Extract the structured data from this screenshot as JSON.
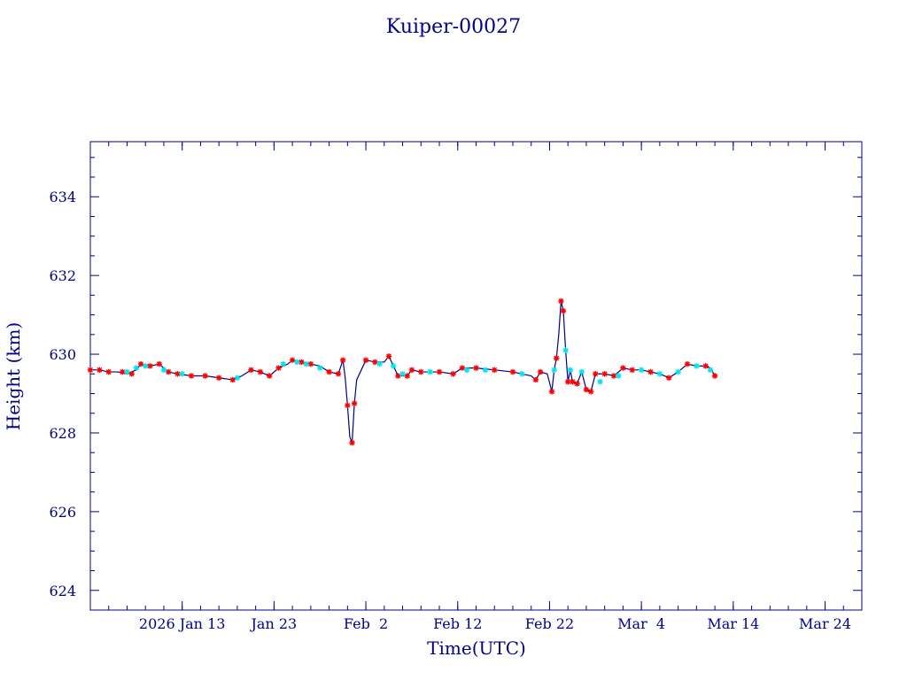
{
  "chart_data": {
    "type": "line",
    "title": "Kuiper-00027",
    "xlabel": "Time(UTC)",
    "ylabel": "Height (km)",
    "x_axis_type": "date",
    "xlim": [
      "2026-01-03",
      "2026-03-28"
    ],
    "ylim": [
      623.5,
      635.4
    ],
    "grid": false,
    "legend": "none",
    "x_ticks": [
      {
        "date": "2026-01-13",
        "label": "2026 Jan 13"
      },
      {
        "date": "2026-01-23",
        "label": "Jan 23"
      },
      {
        "date": "2026-02-02",
        "label": "Feb  2"
      },
      {
        "date": "2026-02-12",
        "label": "Feb 12"
      },
      {
        "date": "2026-02-22",
        "label": "Feb 22"
      },
      {
        "date": "2026-03-04",
        "label": "Mar  4"
      },
      {
        "date": "2026-03-14",
        "label": "Mar 14"
      },
      {
        "date": "2026-03-24",
        "label": "Mar 24"
      }
    ],
    "y_ticks": [
      {
        "value": 624,
        "label": "624"
      },
      {
        "value": 626,
        "label": "626"
      },
      {
        "value": 628,
        "label": "628"
      },
      {
        "value": 630,
        "label": "630"
      },
      {
        "value": 632,
        "label": "632"
      },
      {
        "value": 634,
        "label": "634"
      }
    ],
    "series": [
      {
        "type": "line",
        "color": "#00008b",
        "points": [
          [
            "2026-01-03T00:00",
            629.6
          ],
          [
            "2026-01-04T00:00",
            629.6
          ],
          [
            "2026-01-05T00:00",
            629.55
          ],
          [
            "2026-01-06T00:00",
            629.55
          ],
          [
            "2026-01-07T00:00",
            629.5
          ],
          [
            "2026-01-08T00:00",
            629.6
          ],
          [
            "2026-01-08T12:00",
            629.75
          ],
          [
            "2026-01-09T12:00",
            629.7
          ],
          [
            "2026-01-10T12:00",
            629.75
          ],
          [
            "2026-01-11T12:00",
            629.55
          ],
          [
            "2026-01-12T12:00",
            629.5
          ],
          [
            "2026-01-14T00:00",
            629.45
          ],
          [
            "2026-01-15T12:00",
            629.45
          ],
          [
            "2026-01-17T00:00",
            629.4
          ],
          [
            "2026-01-18T12:00",
            629.35
          ],
          [
            "2026-01-19T12:00",
            629.45
          ],
          [
            "2026-01-20T12:00",
            629.6
          ],
          [
            "2026-01-21T12:00",
            629.55
          ],
          [
            "2026-01-22T12:00",
            629.45
          ],
          [
            "2026-01-23T12:00",
            629.65
          ],
          [
            "2026-01-24T12:00",
            629.75
          ],
          [
            "2026-01-25T00:00",
            629.85
          ],
          [
            "2026-01-26T00:00",
            629.8
          ],
          [
            "2026-01-27T00:00",
            629.75
          ],
          [
            "2026-01-28T00:00",
            629.7
          ],
          [
            "2026-01-29T00:00",
            629.55
          ],
          [
            "2026-01-30T00:00",
            629.5
          ],
          [
            "2026-01-30T12:00",
            629.85
          ],
          [
            "2026-01-30T18:00",
            629.4
          ],
          [
            "2026-01-31T00:00",
            628.7
          ],
          [
            "2026-01-31T06:00",
            627.9
          ],
          [
            "2026-01-31T12:00",
            627.75
          ],
          [
            "2026-01-31T18:00",
            628.75
          ],
          [
            "2026-02-01T00:00",
            629.35
          ],
          [
            "2026-02-02T00:00",
            629.85
          ],
          [
            "2026-02-03T00:00",
            629.8
          ],
          [
            "2026-02-04T00:00",
            629.8
          ],
          [
            "2026-02-04T12:00",
            629.95
          ],
          [
            "2026-02-05T00:00",
            629.7
          ],
          [
            "2026-02-05T12:00",
            629.45
          ],
          [
            "2026-02-06T12:00",
            629.45
          ],
          [
            "2026-02-07T00:00",
            629.6
          ],
          [
            "2026-02-08T00:00",
            629.55
          ],
          [
            "2026-02-10T00:00",
            629.55
          ],
          [
            "2026-02-11T12:00",
            629.5
          ],
          [
            "2026-02-12T12:00",
            629.65
          ],
          [
            "2026-02-14T00:00",
            629.65
          ],
          [
            "2026-02-16T00:00",
            629.6
          ],
          [
            "2026-02-18T00:00",
            629.55
          ],
          [
            "2026-02-20T00:00",
            629.45
          ],
          [
            "2026-02-20T12:00",
            629.35
          ],
          [
            "2026-02-21T00:00",
            629.55
          ],
          [
            "2026-02-21T18:00",
            629.5
          ],
          [
            "2026-02-22T06:00",
            629.05
          ],
          [
            "2026-02-22T12:00",
            629.6
          ],
          [
            "2026-02-22T18:00",
            629.9
          ],
          [
            "2026-02-23T00:00",
            630.5
          ],
          [
            "2026-02-23T06:00",
            631.35
          ],
          [
            "2026-02-23T12:00",
            631.1
          ],
          [
            "2026-02-23T18:00",
            630.1
          ],
          [
            "2026-02-24T00:00",
            629.3
          ],
          [
            "2026-02-24T06:00",
            629.6
          ],
          [
            "2026-02-24T12:00",
            629.3
          ],
          [
            "2026-02-25T00:00",
            629.25
          ],
          [
            "2026-02-25T12:00",
            629.55
          ],
          [
            "2026-02-26T00:00",
            629.1
          ],
          [
            "2026-02-26T12:00",
            629.05
          ],
          [
            "2026-02-27T00:00",
            629.5
          ],
          [
            "2026-02-28T00:00",
            629.5
          ],
          [
            "2026-03-01T00:00",
            629.45
          ],
          [
            "2026-03-02T00:00",
            629.65
          ],
          [
            "2026-03-03T00:00",
            629.6
          ],
          [
            "2026-03-04T00:00",
            629.6
          ],
          [
            "2026-03-05T00:00",
            629.55
          ],
          [
            "2026-03-06T00:00",
            629.5
          ],
          [
            "2026-03-07T00:00",
            629.4
          ],
          [
            "2026-03-08T00:00",
            629.55
          ],
          [
            "2026-03-09T00:00",
            629.75
          ],
          [
            "2026-03-10T00:00",
            629.7
          ],
          [
            "2026-03-11T00:00",
            629.7
          ],
          [
            "2026-03-11T12:00",
            629.65
          ],
          [
            "2026-03-12T00:00",
            629.45
          ]
        ]
      },
      {
        "type": "scatter",
        "color": "#ff0000",
        "marker": "star",
        "points": [
          [
            "2026-01-03T00:00",
            629.6
          ],
          [
            "2026-01-04T00:00",
            629.6
          ],
          [
            "2026-01-05T00:00",
            629.55
          ],
          [
            "2026-01-06T12:00",
            629.55
          ],
          [
            "2026-01-07T12:00",
            629.5
          ],
          [
            "2026-01-08T12:00",
            629.75
          ],
          [
            "2026-01-09T12:00",
            629.7
          ],
          [
            "2026-01-10T12:00",
            629.75
          ],
          [
            "2026-01-11T12:00",
            629.55
          ],
          [
            "2026-01-12T12:00",
            629.5
          ],
          [
            "2026-01-14T00:00",
            629.45
          ],
          [
            "2026-01-15T12:00",
            629.45
          ],
          [
            "2026-01-17T00:00",
            629.4
          ],
          [
            "2026-01-18T12:00",
            629.35
          ],
          [
            "2026-01-20T12:00",
            629.6
          ],
          [
            "2026-01-21T12:00",
            629.55
          ],
          [
            "2026-01-22T12:00",
            629.45
          ],
          [
            "2026-01-23T12:00",
            629.65
          ],
          [
            "2026-01-25T00:00",
            629.85
          ],
          [
            "2026-01-26T00:00",
            629.8
          ],
          [
            "2026-01-27T00:00",
            629.75
          ],
          [
            "2026-01-29T00:00",
            629.55
          ],
          [
            "2026-01-30T00:00",
            629.5
          ],
          [
            "2026-01-30T12:00",
            629.85
          ],
          [
            "2026-01-31T00:00",
            628.7
          ],
          [
            "2026-01-31T12:00",
            627.75
          ],
          [
            "2026-01-31T18:00",
            628.75
          ],
          [
            "2026-02-02T00:00",
            629.85
          ],
          [
            "2026-02-03T00:00",
            629.8
          ],
          [
            "2026-02-04T12:00",
            629.95
          ],
          [
            "2026-02-05T12:00",
            629.45
          ],
          [
            "2026-02-06T12:00",
            629.45
          ],
          [
            "2026-02-07T00:00",
            629.6
          ],
          [
            "2026-02-08T00:00",
            629.55
          ],
          [
            "2026-02-10T00:00",
            629.55
          ],
          [
            "2026-02-11T12:00",
            629.5
          ],
          [
            "2026-02-12T12:00",
            629.65
          ],
          [
            "2026-02-14T00:00",
            629.65
          ],
          [
            "2026-02-16T00:00",
            629.6
          ],
          [
            "2026-02-18T00:00",
            629.55
          ],
          [
            "2026-02-20T12:00",
            629.35
          ],
          [
            "2026-02-21T00:00",
            629.55
          ],
          [
            "2026-02-22T06:00",
            629.05
          ],
          [
            "2026-02-22T18:00",
            629.9
          ],
          [
            "2026-02-23T06:00",
            631.35
          ],
          [
            "2026-02-23T12:00",
            631.1
          ],
          [
            "2026-02-24T00:00",
            629.3
          ],
          [
            "2026-02-24T12:00",
            629.3
          ],
          [
            "2026-02-25T00:00",
            629.25
          ],
          [
            "2026-02-26T00:00",
            629.1
          ],
          [
            "2026-02-26T12:00",
            629.05
          ],
          [
            "2026-02-27T00:00",
            629.5
          ],
          [
            "2026-02-28T00:00",
            629.5
          ],
          [
            "2026-03-01T00:00",
            629.45
          ],
          [
            "2026-03-02T00:00",
            629.65
          ],
          [
            "2026-03-03T00:00",
            629.6
          ],
          [
            "2026-03-05T00:00",
            629.55
          ],
          [
            "2026-03-07T00:00",
            629.4
          ],
          [
            "2026-03-09T00:00",
            629.75
          ],
          [
            "2026-03-11T00:00",
            629.7
          ],
          [
            "2026-03-12T00:00",
            629.45
          ]
        ]
      },
      {
        "type": "scatter",
        "color": "#00e5ee",
        "marker": "star",
        "points": [
          [
            "2026-01-07T00:00",
            629.55
          ],
          [
            "2026-01-08T00:00",
            629.65
          ],
          [
            "2026-01-09T00:00",
            629.7
          ],
          [
            "2026-01-11T00:00",
            629.6
          ],
          [
            "2026-01-13T00:00",
            629.5
          ],
          [
            "2026-01-19T00:00",
            629.4
          ],
          [
            "2026-01-24T00:00",
            629.75
          ],
          [
            "2026-01-25T12:00",
            629.8
          ],
          [
            "2026-01-26T12:00",
            629.75
          ],
          [
            "2026-01-28T00:00",
            629.65
          ],
          [
            "2026-02-03T12:00",
            629.75
          ],
          [
            "2026-02-05T00:00",
            629.7
          ],
          [
            "2026-02-06T00:00",
            629.5
          ],
          [
            "2026-02-09T00:00",
            629.55
          ],
          [
            "2026-02-13T00:00",
            629.6
          ],
          [
            "2026-02-15T00:00",
            629.6
          ],
          [
            "2026-02-19T00:00",
            629.5
          ],
          [
            "2026-02-22T12:00",
            629.6
          ],
          [
            "2026-02-23T18:00",
            630.1
          ],
          [
            "2026-02-24T06:00",
            629.6
          ],
          [
            "2026-02-25T12:00",
            629.55
          ],
          [
            "2026-02-27T12:00",
            629.3
          ],
          [
            "2026-03-01T12:00",
            629.45
          ],
          [
            "2026-03-04T00:00",
            629.6
          ],
          [
            "2026-03-06T00:00",
            629.5
          ],
          [
            "2026-03-08T00:00",
            629.55
          ],
          [
            "2026-03-10T00:00",
            629.7
          ],
          [
            "2026-03-11T12:00",
            629.6
          ]
        ]
      }
    ]
  }
}
